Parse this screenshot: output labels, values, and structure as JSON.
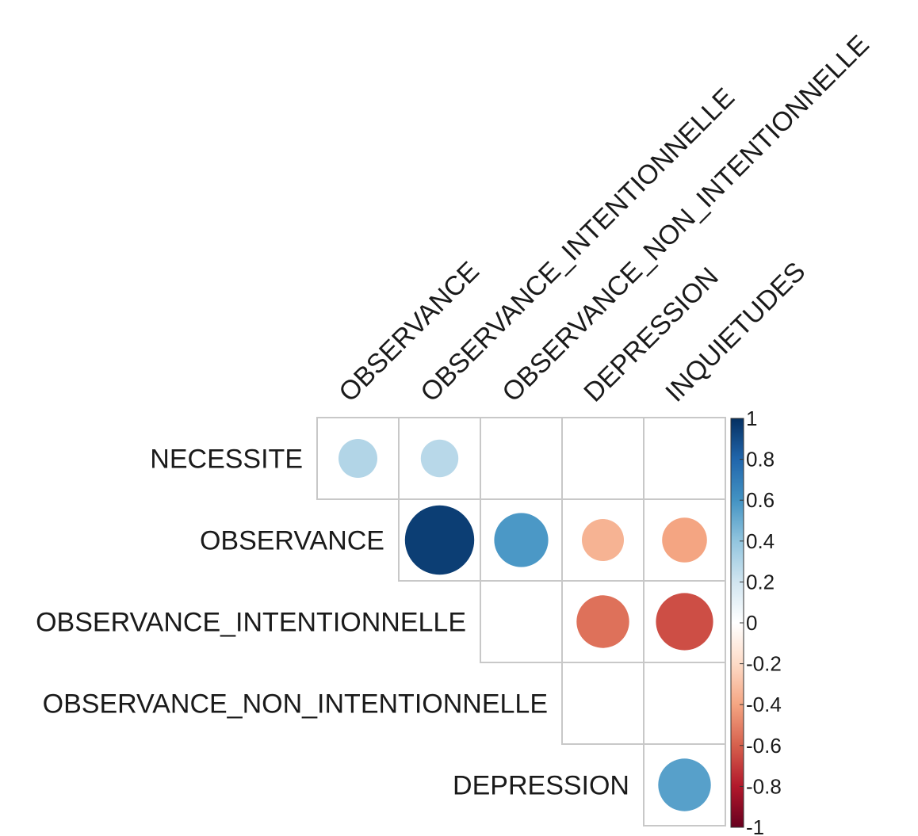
{
  "chart_data": {
    "type": "heatmap",
    "style": "correlation-circles-upper-triangle",
    "columns": [
      "OBSERVANCE",
      "OBSERVANCE_INTENTIONNELLE",
      "OBSERVANCE_NON_INTENTIONNELLE",
      "DEPRESSION",
      "INQUIETUDES"
    ],
    "rows": [
      "NECESSITE",
      "OBSERVANCE",
      "OBSERVANCE_INTENTIONNELLE",
      "OBSERVANCE_NON_INTENTIONNELLE",
      "DEPRESSION"
    ],
    "values": [
      [
        0.3,
        0.28,
        null,
        null,
        null
      ],
      [
        null,
        0.95,
        0.58,
        -0.35,
        -0.4
      ],
      [
        null,
        null,
        null,
        -0.55,
        -0.65
      ],
      [
        null,
        null,
        null,
        null,
        null
      ],
      [
        null,
        null,
        null,
        null,
        0.55
      ]
    ],
    "colorbar": {
      "ticks": [
        "1",
        "0.8",
        "0.6",
        "0.4",
        "0.2",
        "0",
        "-0.2",
        "-0.4",
        "-0.6",
        "-0.8",
        "-1"
      ],
      "range": [
        -1,
        1
      ],
      "colors": [
        "#67001F",
        "#B2182B",
        "#D6604D",
        "#F4A582",
        "#FDDBC7",
        "#FFFFFF",
        "#D1E5F0",
        "#92C5DE",
        "#4393C3",
        "#2166AC",
        "#053061"
      ]
    }
  }
}
